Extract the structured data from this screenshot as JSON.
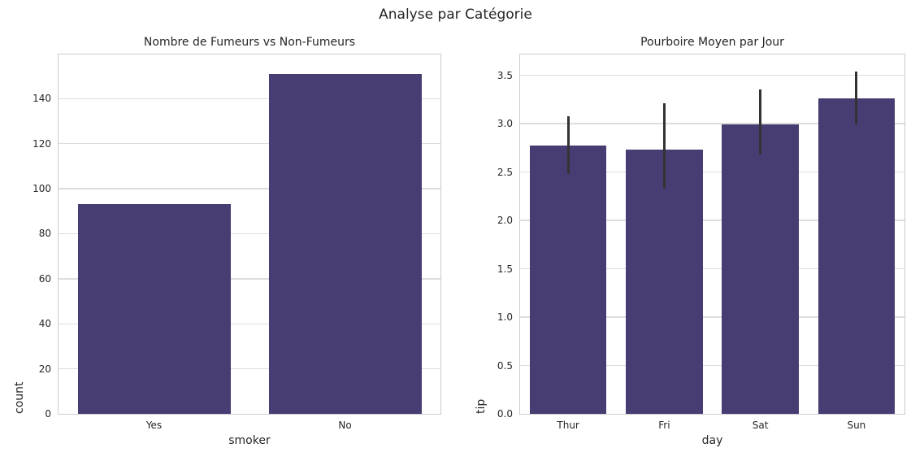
{
  "figure": {
    "title": "Analyse par Catégorie",
    "background_color": "#ffffff",
    "text_color": "#262626",
    "grid_color": "#dddddd",
    "spine_color": "#cccccc"
  },
  "chart_data": [
    {
      "type": "bar",
      "title": "Nombre de Fumeurs vs Non-Fumeurs",
      "xlabel": "smoker",
      "ylabel": "count",
      "categories": [
        "Yes",
        "No"
      ],
      "values": [
        93,
        151
      ],
      "yticks": [
        0,
        20,
        40,
        60,
        80,
        100,
        120,
        140
      ],
      "ytick_labels": [
        "0",
        "20",
        "40",
        "60",
        "80",
        "100",
        "120",
        "140"
      ],
      "ylim": [
        0,
        159.6
      ],
      "grid": true,
      "legend": null,
      "bar_color": "#483d73"
    },
    {
      "type": "bar",
      "title": "Pourboire Moyen par Jour",
      "xlabel": "day",
      "ylabel": "tip",
      "categories": [
        "Thur",
        "Fri",
        "Sat",
        "Sun"
      ],
      "values": [
        2.77,
        2.73,
        2.99,
        3.26
      ],
      "error_bars": [
        [
          2.48,
          3.08
        ],
        [
          2.33,
          3.21
        ],
        [
          2.68,
          3.35
        ],
        [
          2.99,
          3.54
        ]
      ],
      "yticks": [
        0.0,
        0.5,
        1.0,
        1.5,
        2.0,
        2.5,
        3.0,
        3.5
      ],
      "ytick_labels": [
        "0.0",
        "0.5",
        "1.0",
        "1.5",
        "2.0",
        "2.5",
        "3.0",
        "3.5"
      ],
      "ylim": [
        0,
        3.715
      ],
      "grid": true,
      "legend": null,
      "bar_color": "#483d73",
      "error_color": "#333333"
    }
  ]
}
